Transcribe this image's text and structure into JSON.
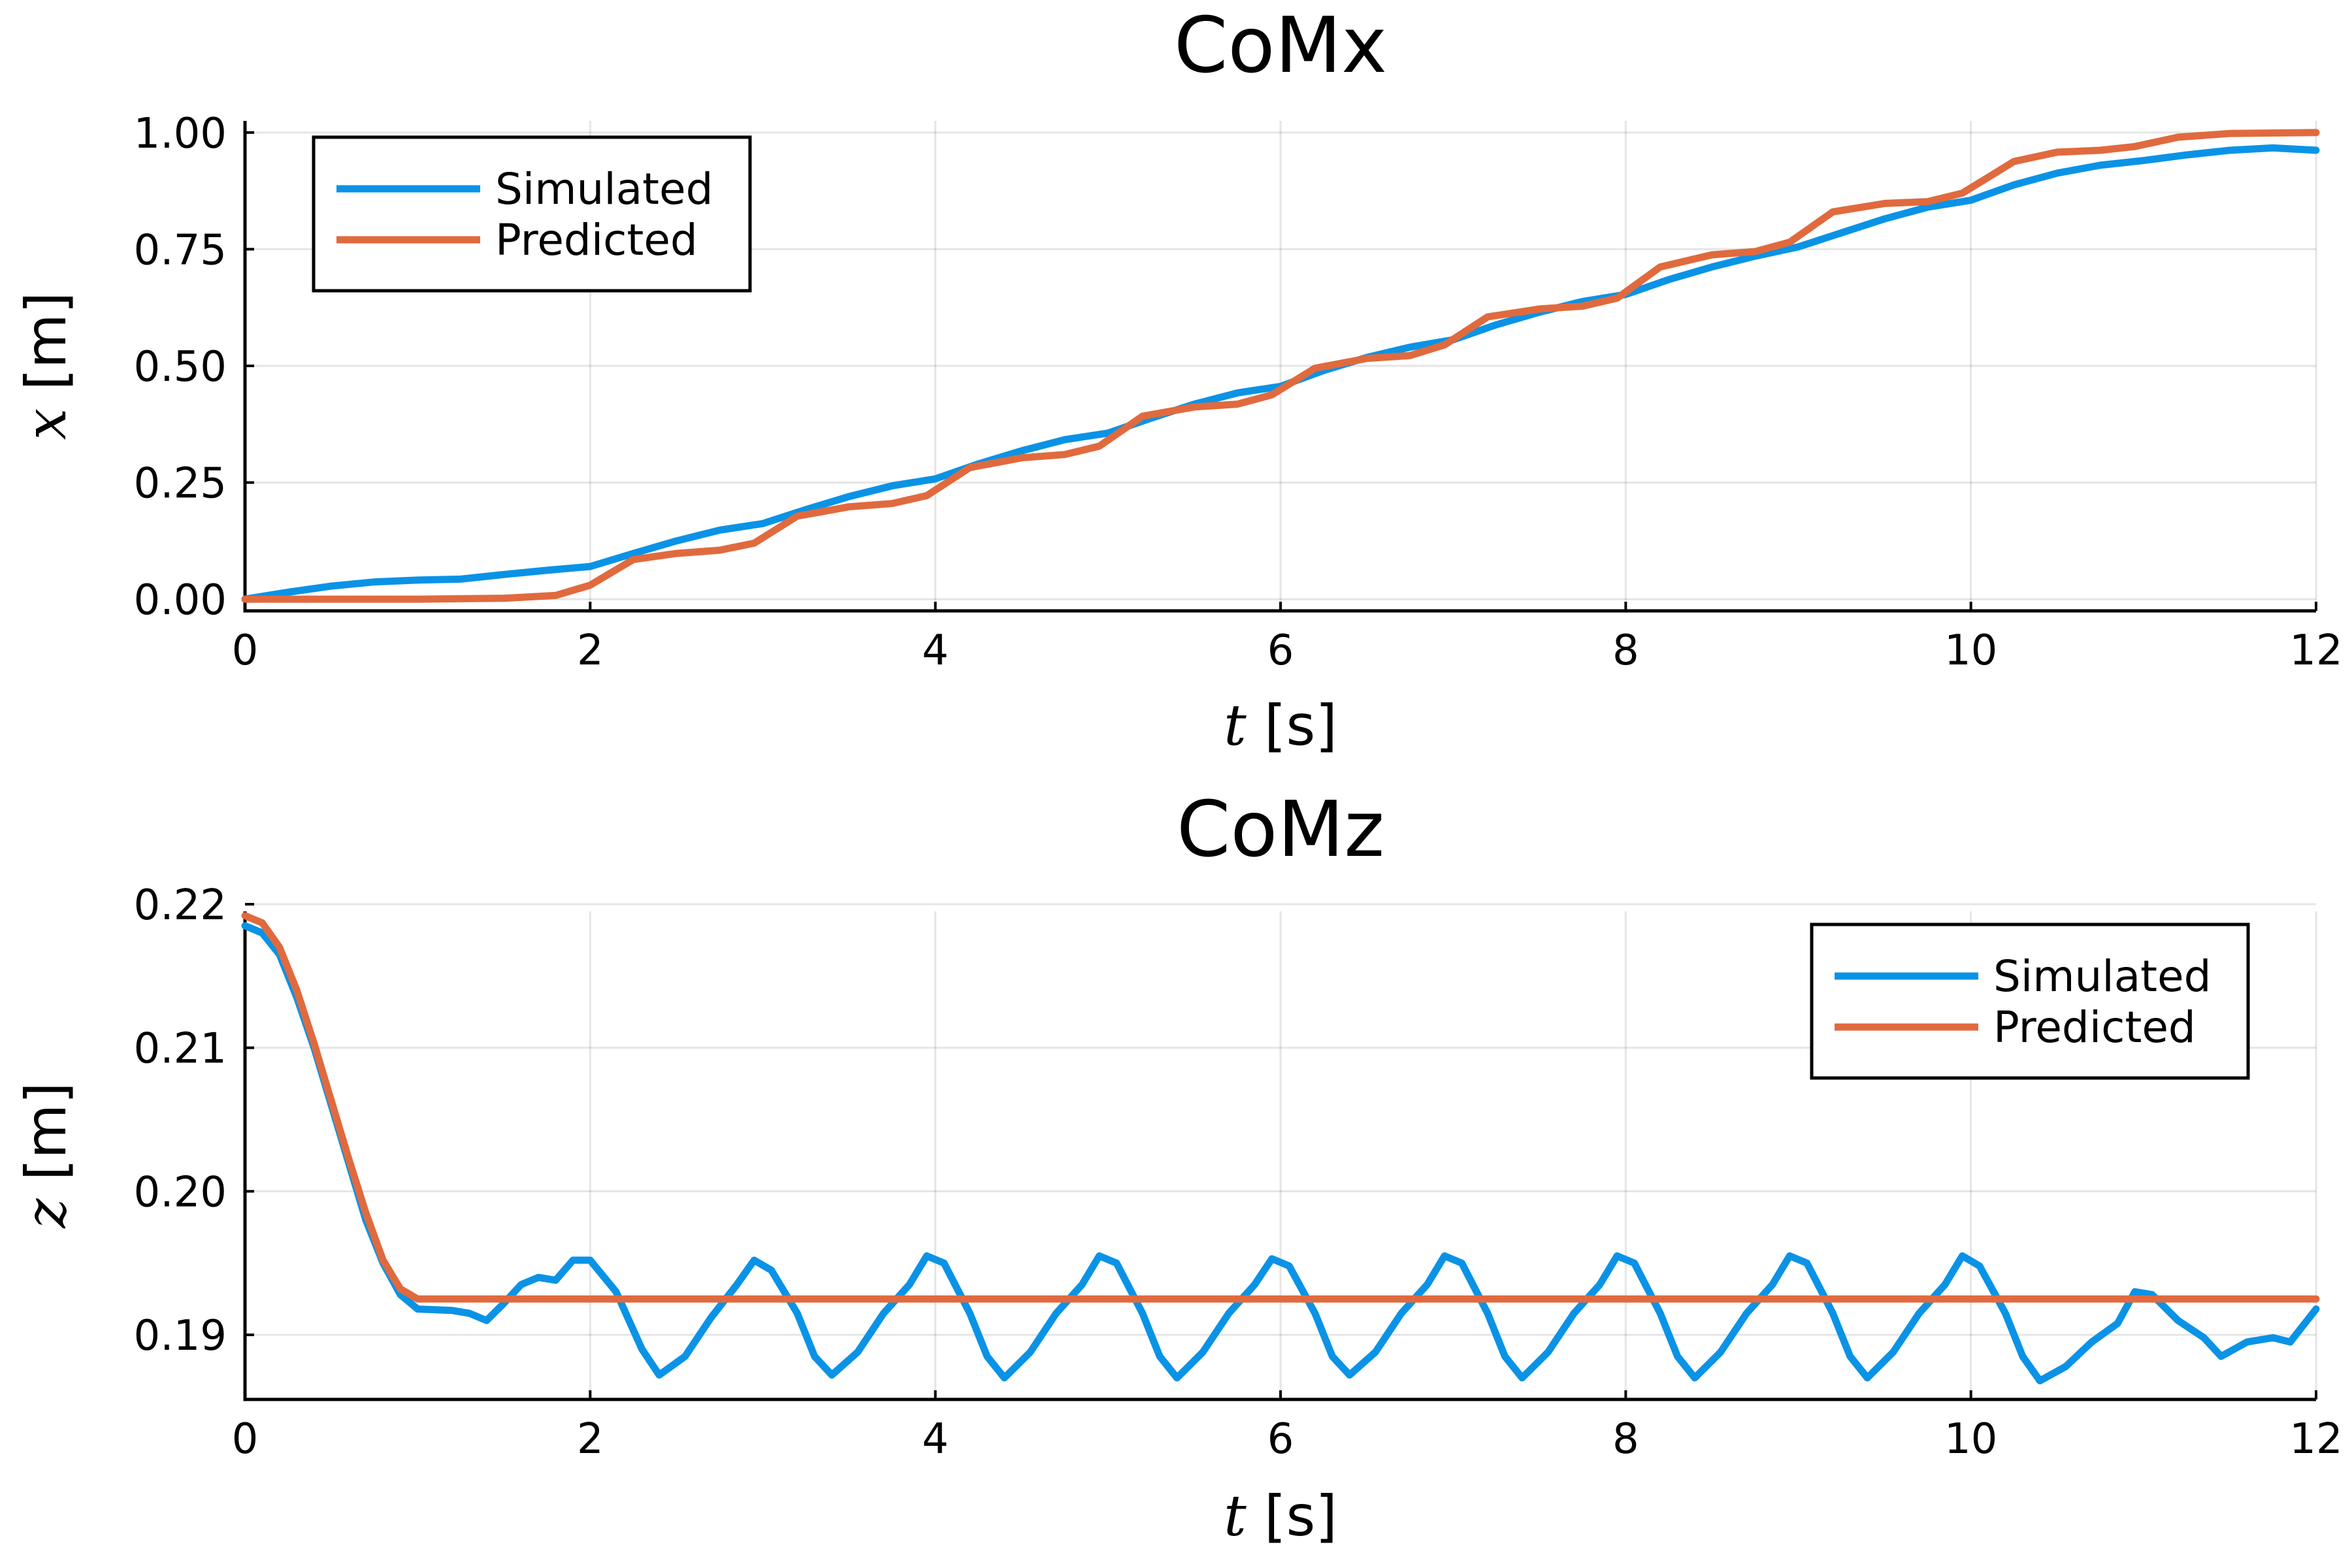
{
  "colors": {
    "simulated": "#0a93e6",
    "predicted": "#e06a3e"
  },
  "chart_data": [
    {
      "type": "line",
      "title": "CoMx",
      "xlabel": {
        "var": "t",
        "unit": " [s]"
      },
      "ylabel": {
        "var": "x",
        "unit": " [m]"
      },
      "xlim": [
        0,
        12
      ],
      "ylim": [
        -0.025,
        1.025
      ],
      "xticks": [
        0,
        2,
        4,
        6,
        8,
        10,
        12
      ],
      "xticklabels": [
        "0",
        "2",
        "4",
        "6",
        "8",
        "10",
        "12"
      ],
      "yticks": [
        0,
        0.25,
        0.5,
        0.75,
        1.0
      ],
      "yticklabels": [
        "0.00",
        "0.25",
        "0.50",
        "0.75",
        "1.00"
      ],
      "grid": true,
      "legend": {
        "position": "top-left",
        "entries": [
          "Simulated",
          "Predicted"
        ]
      },
      "series": [
        {
          "name": "Simulated",
          "color_key": "simulated",
          "points": [
            [
              0,
              0
            ],
            [
              0.25,
              0.015
            ],
            [
              0.5,
              0.028
            ],
            [
              0.75,
              0.037
            ],
            [
              1.0,
              0.041
            ],
            [
              1.25,
              0.043
            ],
            [
              1.5,
              0.053
            ],
            [
              1.75,
              0.062
            ],
            [
              2.0,
              0.07
            ],
            [
              2.25,
              0.098
            ],
            [
              2.5,
              0.125
            ],
            [
              2.75,
              0.148
            ],
            [
              3.0,
              0.162
            ],
            [
              3.25,
              0.192
            ],
            [
              3.5,
              0.22
            ],
            [
              3.75,
              0.243
            ],
            [
              4.0,
              0.258
            ],
            [
              4.25,
              0.29
            ],
            [
              4.5,
              0.318
            ],
            [
              4.75,
              0.342
            ],
            [
              5.0,
              0.356
            ],
            [
              5.25,
              0.388
            ],
            [
              5.5,
              0.418
            ],
            [
              5.75,
              0.442
            ],
            [
              6.0,
              0.456
            ],
            [
              6.25,
              0.49
            ],
            [
              6.5,
              0.518
            ],
            [
              6.75,
              0.54
            ],
            [
              7.0,
              0.556
            ],
            [
              7.25,
              0.588
            ],
            [
              7.5,
              0.615
            ],
            [
              7.75,
              0.638
            ],
            [
              8.0,
              0.653
            ],
            [
              8.25,
              0.685
            ],
            [
              8.5,
              0.712
            ],
            [
              8.75,
              0.735
            ],
            [
              9.0,
              0.755
            ],
            [
              9.25,
              0.785
            ],
            [
              9.5,
              0.815
            ],
            [
              9.75,
              0.84
            ],
            [
              10.0,
              0.855
            ],
            [
              10.25,
              0.888
            ],
            [
              10.5,
              0.913
            ],
            [
              10.75,
              0.93
            ],
            [
              11.0,
              0.94
            ],
            [
              11.25,
              0.952
            ],
            [
              11.5,
              0.962
            ],
            [
              11.75,
              0.967
            ],
            [
              12.0,
              0.962
            ]
          ]
        },
        {
          "name": "Predicted",
          "color_key": "predicted",
          "points": [
            [
              0,
              0
            ],
            [
              0.5,
              0
            ],
            [
              1.0,
              0
            ],
            [
              1.5,
              0.002
            ],
            [
              1.8,
              0.008
            ],
            [
              2.0,
              0.03
            ],
            [
              2.25,
              0.085
            ],
            [
              2.5,
              0.098
            ],
            [
              2.75,
              0.105
            ],
            [
              2.95,
              0.12
            ],
            [
              3.2,
              0.178
            ],
            [
              3.5,
              0.198
            ],
            [
              3.75,
              0.205
            ],
            [
              3.95,
              0.222
            ],
            [
              4.2,
              0.282
            ],
            [
              4.5,
              0.303
            ],
            [
              4.75,
              0.31
            ],
            [
              4.95,
              0.328
            ],
            [
              5.2,
              0.392
            ],
            [
              5.5,
              0.412
            ],
            [
              5.75,
              0.418
            ],
            [
              5.95,
              0.438
            ],
            [
              6.2,
              0.495
            ],
            [
              6.5,
              0.516
            ],
            [
              6.75,
              0.522
            ],
            [
              6.95,
              0.545
            ],
            [
              7.2,
              0.605
            ],
            [
              7.5,
              0.622
            ],
            [
              7.75,
              0.628
            ],
            [
              7.95,
              0.645
            ],
            [
              8.2,
              0.712
            ],
            [
              8.5,
              0.738
            ],
            [
              8.75,
              0.745
            ],
            [
              8.95,
              0.765
            ],
            [
              9.2,
              0.83
            ],
            [
              9.5,
              0.848
            ],
            [
              9.75,
              0.852
            ],
            [
              9.95,
              0.87
            ],
            [
              10.25,
              0.938
            ],
            [
              10.5,
              0.958
            ],
            [
              10.75,
              0.962
            ],
            [
              10.95,
              0.97
            ],
            [
              11.2,
              0.99
            ],
            [
              11.5,
              0.998
            ],
            [
              12.0,
              1.0
            ]
          ]
        }
      ]
    },
    {
      "type": "line",
      "title": "CoMz",
      "xlabel": {
        "var": "t",
        "unit": " [s]"
      },
      "ylabel": {
        "var": "z",
        "unit": " [m]"
      },
      "xlim": [
        0,
        12
      ],
      "ylim": [
        0.1855,
        0.2195
      ],
      "xticks": [
        0,
        2,
        4,
        6,
        8,
        10,
        12
      ],
      "xticklabels": [
        "0",
        "2",
        "4",
        "6",
        "8",
        "10",
        "12"
      ],
      "yticks": [
        0.19,
        0.2,
        0.21,
        0.22
      ],
      "yticklabels": [
        "0.19",
        "0.20",
        "0.21",
        "0.22"
      ],
      "grid": true,
      "legend": {
        "position": "top-right",
        "entries": [
          "Simulated",
          "Predicted"
        ]
      },
      "series": [
        {
          "name": "Simulated",
          "color_key": "simulated",
          "points": [
            [
              0,
              0.2185
            ],
            [
              0.1,
              0.218
            ],
            [
              0.2,
              0.2165
            ],
            [
              0.3,
              0.2135
            ],
            [
              0.4,
              0.21
            ],
            [
              0.5,
              0.206
            ],
            [
              0.6,
              0.202
            ],
            [
              0.7,
              0.198
            ],
            [
              0.8,
              0.195
            ],
            [
              0.9,
              0.1928
            ],
            [
              1.0,
              0.1918
            ],
            [
              1.2,
              0.1917
            ],
            [
              1.3,
              0.1915
            ],
            [
              1.4,
              0.191
            ],
            [
              1.5,
              0.1922
            ],
            [
              1.6,
              0.1935
            ],
            [
              1.7,
              0.194
            ],
            [
              1.8,
              0.1938
            ],
            [
              1.9,
              0.1952
            ],
            [
              2.0,
              0.1952
            ],
            [
              2.15,
              0.193
            ],
            [
              2.3,
              0.189
            ],
            [
              2.4,
              0.1872
            ],
            [
              2.55,
              0.1885
            ],
            [
              2.7,
              0.1912
            ],
            [
              2.85,
              0.1935
            ],
            [
              2.95,
              0.1952
            ],
            [
              3.05,
              0.1945
            ],
            [
              3.2,
              0.1915
            ],
            [
              3.3,
              0.1885
            ],
            [
              3.4,
              0.1872
            ],
            [
              3.55,
              0.1888
            ],
            [
              3.7,
              0.1915
            ],
            [
              3.85,
              0.1935
            ],
            [
              3.95,
              0.1955
            ],
            [
              4.05,
              0.195
            ],
            [
              4.2,
              0.1915
            ],
            [
              4.3,
              0.1885
            ],
            [
              4.4,
              0.187
            ],
            [
              4.55,
              0.1888
            ],
            [
              4.7,
              0.1915
            ],
            [
              4.85,
              0.1935
            ],
            [
              4.95,
              0.1955
            ],
            [
              5.05,
              0.195
            ],
            [
              5.2,
              0.1915
            ],
            [
              5.3,
              0.1885
            ],
            [
              5.4,
              0.187
            ],
            [
              5.55,
              0.1888
            ],
            [
              5.7,
              0.1915
            ],
            [
              5.85,
              0.1935
            ],
            [
              5.95,
              0.1953
            ],
            [
              6.05,
              0.1948
            ],
            [
              6.2,
              0.1915
            ],
            [
              6.3,
              0.1885
            ],
            [
              6.4,
              0.1872
            ],
            [
              6.55,
              0.1888
            ],
            [
              6.7,
              0.1915
            ],
            [
              6.85,
              0.1935
            ],
            [
              6.95,
              0.1955
            ],
            [
              7.05,
              0.195
            ],
            [
              7.2,
              0.1915
            ],
            [
              7.3,
              0.1885
            ],
            [
              7.4,
              0.187
            ],
            [
              7.55,
              0.1888
            ],
            [
              7.7,
              0.1915
            ],
            [
              7.85,
              0.1935
            ],
            [
              7.95,
              0.1955
            ],
            [
              8.05,
              0.195
            ],
            [
              8.2,
              0.1915
            ],
            [
              8.3,
              0.1885
            ],
            [
              8.4,
              0.187
            ],
            [
              8.55,
              0.1888
            ],
            [
              8.7,
              0.1915
            ],
            [
              8.85,
              0.1935
            ],
            [
              8.95,
              0.1955
            ],
            [
              9.05,
              0.195
            ],
            [
              9.2,
              0.1915
            ],
            [
              9.3,
              0.1885
            ],
            [
              9.4,
              0.187
            ],
            [
              9.55,
              0.1888
            ],
            [
              9.7,
              0.1915
            ],
            [
              9.85,
              0.1935
            ],
            [
              9.95,
              0.1955
            ],
            [
              10.05,
              0.1948
            ],
            [
              10.2,
              0.1915
            ],
            [
              10.3,
              0.1885
            ],
            [
              10.4,
              0.1868
            ],
            [
              10.55,
              0.1878
            ],
            [
              10.7,
              0.1895
            ],
            [
              10.85,
              0.1908
            ],
            [
              10.95,
              0.193
            ],
            [
              11.05,
              0.1928
            ],
            [
              11.2,
              0.191
            ],
            [
              11.35,
              0.1898
            ],
            [
              11.45,
              0.1885
            ],
            [
              11.6,
              0.1895
            ],
            [
              11.75,
              0.1898
            ],
            [
              11.85,
              0.1895
            ],
            [
              12.0,
              0.1918
            ]
          ]
        },
        {
          "name": "Predicted",
          "color_key": "predicted",
          "points": [
            [
              0,
              0.2192
            ],
            [
              0.1,
              0.2187
            ],
            [
              0.2,
              0.217
            ],
            [
              0.3,
              0.214
            ],
            [
              0.4,
              0.2103
            ],
            [
              0.5,
              0.2063
            ],
            [
              0.6,
              0.2023
            ],
            [
              0.7,
              0.1985
            ],
            [
              0.8,
              0.1952
            ],
            [
              0.9,
              0.1932
            ],
            [
              1.0,
              0.1925
            ],
            [
              12.0,
              0.1925
            ]
          ]
        }
      ]
    }
  ]
}
